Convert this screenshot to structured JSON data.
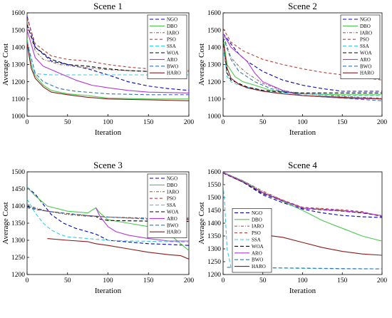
{
  "chart_data": [
    {
      "type": "line",
      "title": "Scene 1",
      "xlabel": "Iteration",
      "ylabel": "Average Cost",
      "xlim": [
        0,
        200
      ],
      "ylim": [
        1000,
        1600
      ],
      "xticks": [
        0,
        50,
        100,
        150,
        200
      ],
      "yticks": [
        1000,
        1100,
        1200,
        1300,
        1400,
        1500,
        1600
      ],
      "legend_position": "top-right",
      "grid": false,
      "series": [
        {
          "name": "NGO",
          "x": [
            0,
            10,
            30,
            50,
            75,
            100,
            125,
            150,
            175,
            200
          ],
          "y": [
            1580,
            1400,
            1320,
            1300,
            1275,
            1240,
            1200,
            1175,
            1160,
            1150
          ]
        },
        {
          "name": "DBO",
          "x": [
            0,
            5,
            10,
            20,
            30,
            50,
            75,
            100,
            150,
            200
          ],
          "y": [
            1450,
            1300,
            1235,
            1180,
            1150,
            1130,
            1120,
            1105,
            1100,
            1100
          ]
        },
        {
          "name": "IARO",
          "x": [
            0,
            10,
            20,
            40,
            75,
            100,
            150,
            200
          ],
          "y": [
            1540,
            1380,
            1330,
            1300,
            1280,
            1270,
            1260,
            1260
          ]
        },
        {
          "name": "PSO",
          "x": [
            0,
            10,
            30,
            50,
            75,
            100,
            125,
            150,
            200
          ],
          "y": [
            1570,
            1420,
            1350,
            1330,
            1320,
            1300,
            1285,
            1275,
            1265
          ]
        },
        {
          "name": "SSA",
          "x": [
            0,
            8,
            15,
            30,
            50,
            100,
            150,
            200
          ],
          "y": [
            1420,
            1250,
            1245,
            1240,
            1240,
            1240,
            1240,
            1240
          ]
        },
        {
          "name": "WOA",
          "x": [
            0,
            10,
            30,
            50,
            75,
            100,
            125,
            150,
            200
          ],
          "y": [
            1530,
            1400,
            1330,
            1300,
            1290,
            1275,
            1265,
            1260,
            1255
          ]
        },
        {
          "name": "ARO",
          "x": [
            0,
            10,
            20,
            40,
            60,
            80,
            100,
            125,
            150,
            200
          ],
          "y": [
            1500,
            1340,
            1290,
            1250,
            1210,
            1180,
            1165,
            1150,
            1140,
            1135
          ]
        },
        {
          "name": "BWO",
          "x": [
            0,
            10,
            20,
            40,
            60,
            100,
            150,
            200
          ],
          "y": [
            1430,
            1250,
            1200,
            1160,
            1145,
            1130,
            1125,
            1125
          ]
        },
        {
          "name": "HARO",
          "x": [
            0,
            5,
            10,
            20,
            30,
            50,
            75,
            100,
            150,
            200
          ],
          "y": [
            1420,
            1280,
            1220,
            1170,
            1140,
            1125,
            1110,
            1100,
            1095,
            1090
          ]
        }
      ]
    },
    {
      "type": "line",
      "title": "Scene 2",
      "xlabel": "Iteration",
      "ylabel": "Average Cost",
      "xlim": [
        0,
        200
      ],
      "ylim": [
        1000,
        1600
      ],
      "xticks": [
        0,
        50,
        100,
        150,
        200
      ],
      "yticks": [
        1000,
        1100,
        1200,
        1300,
        1400,
        1500,
        1600
      ],
      "legend_position": "top-right",
      "grid": false,
      "series": [
        {
          "name": "NGO",
          "x": [
            0,
            10,
            20,
            30,
            50,
            75,
            100,
            125,
            150,
            200
          ],
          "y": [
            1480,
            1420,
            1360,
            1320,
            1260,
            1210,
            1180,
            1160,
            1145,
            1145
          ]
        },
        {
          "name": "DBO",
          "x": [
            0,
            5,
            15,
            25,
            40,
            60,
            80,
            100,
            150,
            200
          ],
          "y": [
            1460,
            1300,
            1230,
            1200,
            1180,
            1150,
            1140,
            1130,
            1125,
            1125
          ]
        },
        {
          "name": "IARO",
          "x": [
            0,
            10,
            20,
            30,
            50,
            75,
            100,
            150,
            200
          ],
          "y": [
            1470,
            1340,
            1290,
            1250,
            1190,
            1150,
            1130,
            1115,
            1105
          ]
        },
        {
          "name": "PSO",
          "x": [
            0,
            10,
            25,
            50,
            75,
            100,
            125,
            150,
            175,
            200
          ],
          "y": [
            1510,
            1430,
            1380,
            1330,
            1300,
            1275,
            1255,
            1240,
            1225,
            1210
          ]
        },
        {
          "name": "SSA",
          "x": [
            0,
            5,
            10,
            20,
            40,
            60,
            100,
            150,
            200
          ],
          "y": [
            1400,
            1230,
            1200,
            1180,
            1160,
            1140,
            1130,
            1120,
            1120
          ]
        },
        {
          "name": "WOA",
          "x": [
            0,
            5,
            10,
            20,
            30,
            50,
            75,
            100,
            150,
            200
          ],
          "y": [
            1450,
            1250,
            1210,
            1190,
            1170,
            1150,
            1140,
            1135,
            1135,
            1135
          ]
        },
        {
          "name": "ARO",
          "x": [
            0,
            10,
            20,
            30,
            40,
            50,
            75,
            100,
            150,
            200
          ],
          "y": [
            1480,
            1400,
            1360,
            1320,
            1250,
            1200,
            1150,
            1120,
            1105,
            1100
          ]
        },
        {
          "name": "BWO",
          "x": [
            0,
            10,
            20,
            40,
            60,
            80,
            100,
            150,
            200
          ],
          "y": [
            1460,
            1330,
            1260,
            1200,
            1160,
            1140,
            1120,
            1105,
            1090
          ]
        },
        {
          "name": "HARO",
          "x": [
            0,
            5,
            10,
            20,
            30,
            50,
            75,
            100,
            150,
            200
          ],
          "y": [
            1430,
            1280,
            1220,
            1185,
            1165,
            1145,
            1130,
            1120,
            1110,
            1100
          ]
        }
      ]
    },
    {
      "type": "line",
      "title": "Scene 3",
      "xlabel": "Iteration",
      "ylabel": "Average Cost",
      "xlim": [
        0,
        200
      ],
      "ylim": [
        1200,
        1500
      ],
      "xticks": [
        0,
        50,
        100,
        150,
        200
      ],
      "yticks": [
        1200,
        1250,
        1300,
        1350,
        1400,
        1450,
        1500
      ],
      "legend_position": "top-right",
      "grid": false,
      "series": [
        {
          "name": "NGO",
          "x": [
            0,
            10,
            20,
            30,
            45,
            60,
            75,
            85,
            90,
            100,
            125,
            150,
            175,
            200
          ],
          "y": [
            1455,
            1435,
            1405,
            1375,
            1350,
            1335,
            1325,
            1318,
            1312,
            1300,
            1295,
            1290,
            1288,
            1285
          ]
        },
        {
          "name": "DBO",
          "x": [
            0,
            10,
            25,
            50,
            75,
            85,
            90,
            100,
            125,
            150,
            175,
            190,
            200
          ],
          "y": [
            1455,
            1430,
            1400,
            1385,
            1380,
            1395,
            1380,
            1360,
            1350,
            1340,
            1320,
            1290,
            1270
          ]
        },
        {
          "name": "IARO",
          "x": [
            0,
            10,
            25,
            50,
            75,
            100,
            150,
            200
          ],
          "y": [
            1405,
            1395,
            1385,
            1375,
            1370,
            1368,
            1365,
            1365
          ]
        },
        {
          "name": "PSO",
          "x": [
            0,
            10,
            25,
            50,
            75,
            100,
            150,
            200
          ],
          "y": [
            1395,
            1390,
            1385,
            1378,
            1372,
            1368,
            1362,
            1360
          ]
        },
        {
          "name": "SSA",
          "x": [
            0,
            10,
            20,
            30,
            40,
            50,
            75,
            100,
            125,
            150,
            200
          ],
          "y": [
            1420,
            1380,
            1350,
            1330,
            1318,
            1310,
            1305,
            1300,
            1298,
            1297,
            1295
          ]
        },
        {
          "name": "WOA",
          "x": [
            0,
            10,
            25,
            50,
            75,
            85,
            90,
            100,
            150,
            200
          ],
          "y": [
            1400,
            1392,
            1385,
            1378,
            1372,
            1370,
            1362,
            1358,
            1356,
            1355
          ]
        },
        {
          "name": "ARO",
          "x": [
            85,
            90,
            100,
            110,
            125,
            150,
            175,
            200
          ],
          "y": [
            1395,
            1370,
            1340,
            1325,
            1315,
            1305,
            1298,
            1298
          ]
        },
        {
          "name": "BWO",
          "x": [
            0,
            10,
            25,
            50,
            75,
            100,
            150,
            200
          ],
          "y": [
            1398,
            1392,
            1385,
            1378,
            1372,
            1368,
            1363,
            1362
          ]
        },
        {
          "name": "HARO",
          "x": [
            25,
            50,
            75,
            85,
            100,
            125,
            150,
            175,
            190,
            200
          ],
          "y": [
            1305,
            1300,
            1296,
            1290,
            1285,
            1275,
            1265,
            1258,
            1255,
            1245
          ]
        }
      ]
    },
    {
      "type": "line",
      "title": "Scene 4",
      "xlabel": "Iteration",
      "ylabel": "Average Cost",
      "xlim": [
        0,
        200
      ],
      "ylim": [
        1200,
        1600
      ],
      "xticks": [
        0,
        50,
        100,
        150,
        200
      ],
      "yticks": [
        1200,
        1250,
        1300,
        1350,
        1400,
        1450,
        1500,
        1550,
        1600
      ],
      "legend_position": "bottom-left",
      "grid": false,
      "series": [
        {
          "name": "NGO",
          "x": [
            0,
            25,
            50,
            75,
            100,
            125,
            150,
            175,
            200
          ],
          "y": [
            1595,
            1560,
            1510,
            1480,
            1455,
            1440,
            1430,
            1425,
            1422
          ]
        },
        {
          "name": "DBO",
          "x": [
            0,
            25,
            50,
            75,
            100,
            125,
            150,
            175,
            200
          ],
          "y": [
            1598,
            1565,
            1520,
            1485,
            1450,
            1410,
            1380,
            1350,
            1330
          ]
        },
        {
          "name": "IARO",
          "x": [
            0,
            25,
            50,
            75,
            100,
            125,
            150,
            175,
            200
          ],
          "y": [
            1598,
            1565,
            1525,
            1490,
            1460,
            1455,
            1450,
            1440,
            1430
          ]
        },
        {
          "name": "PSO",
          "x": [
            0,
            25,
            50,
            75,
            100,
            125,
            150,
            175,
            200
          ],
          "y": [
            1595,
            1560,
            1520,
            1490,
            1462,
            1457,
            1452,
            1445,
            1425
          ]
        },
        {
          "name": "SSA",
          "x": [
            0,
            2,
            5,
            10,
            50,
            100,
            150,
            200
          ],
          "y": [
            1550,
            1480,
            1300,
            1228,
            1226,
            1224,
            1222,
            1222
          ]
        },
        {
          "name": "WOA",
          "x": [
            0,
            25,
            50,
            75,
            100,
            125,
            150,
            175,
            200
          ],
          "y": [
            1596,
            1560,
            1515,
            1487,
            1458,
            1452,
            1447,
            1440,
            1428
          ]
        },
        {
          "name": "ARO",
          "x": [
            0,
            25,
            50,
            75,
            100,
            125,
            150,
            175,
            200
          ],
          "y": [
            1597,
            1562,
            1518,
            1488,
            1459,
            1453,
            1448,
            1442,
            1429
          ]
        },
        {
          "name": "BWO",
          "x": [
            5,
            25,
            50,
            100,
            150,
            200
          ],
          "y": [
            1228,
            1227,
            1226,
            1225,
            1223,
            1222
          ]
        },
        {
          "name": "HARO",
          "x": [
            20,
            30,
            50,
            75,
            100,
            125,
            150,
            175,
            200
          ],
          "y": [
            1375,
            1365,
            1355,
            1345,
            1325,
            1305,
            1290,
            1280,
            1275
          ]
        }
      ]
    }
  ],
  "styles": {
    "NGO": {
      "color": "#0000cc",
      "dash": "5,3"
    },
    "DBO": {
      "color": "#4ec94e",
      "dash": ""
    },
    "IARO": {
      "color": "#8a6d5a",
      "dash": "4,2,1,2"
    },
    "PSO": {
      "color": "#b5403a",
      "dash": "4,3"
    },
    "SSA": {
      "color": "#39c9e6",
      "dash": "5,3"
    },
    "WOA": {
      "color": "#000000",
      "dash": "5,3"
    },
    "ARO": {
      "color": "#b23ad9",
      "dash": ""
    },
    "BWO": {
      "color": "#2e74b5",
      "dash": "5,3"
    },
    "HARO": {
      "color": "#8b1a1a",
      "dash": ""
    }
  }
}
